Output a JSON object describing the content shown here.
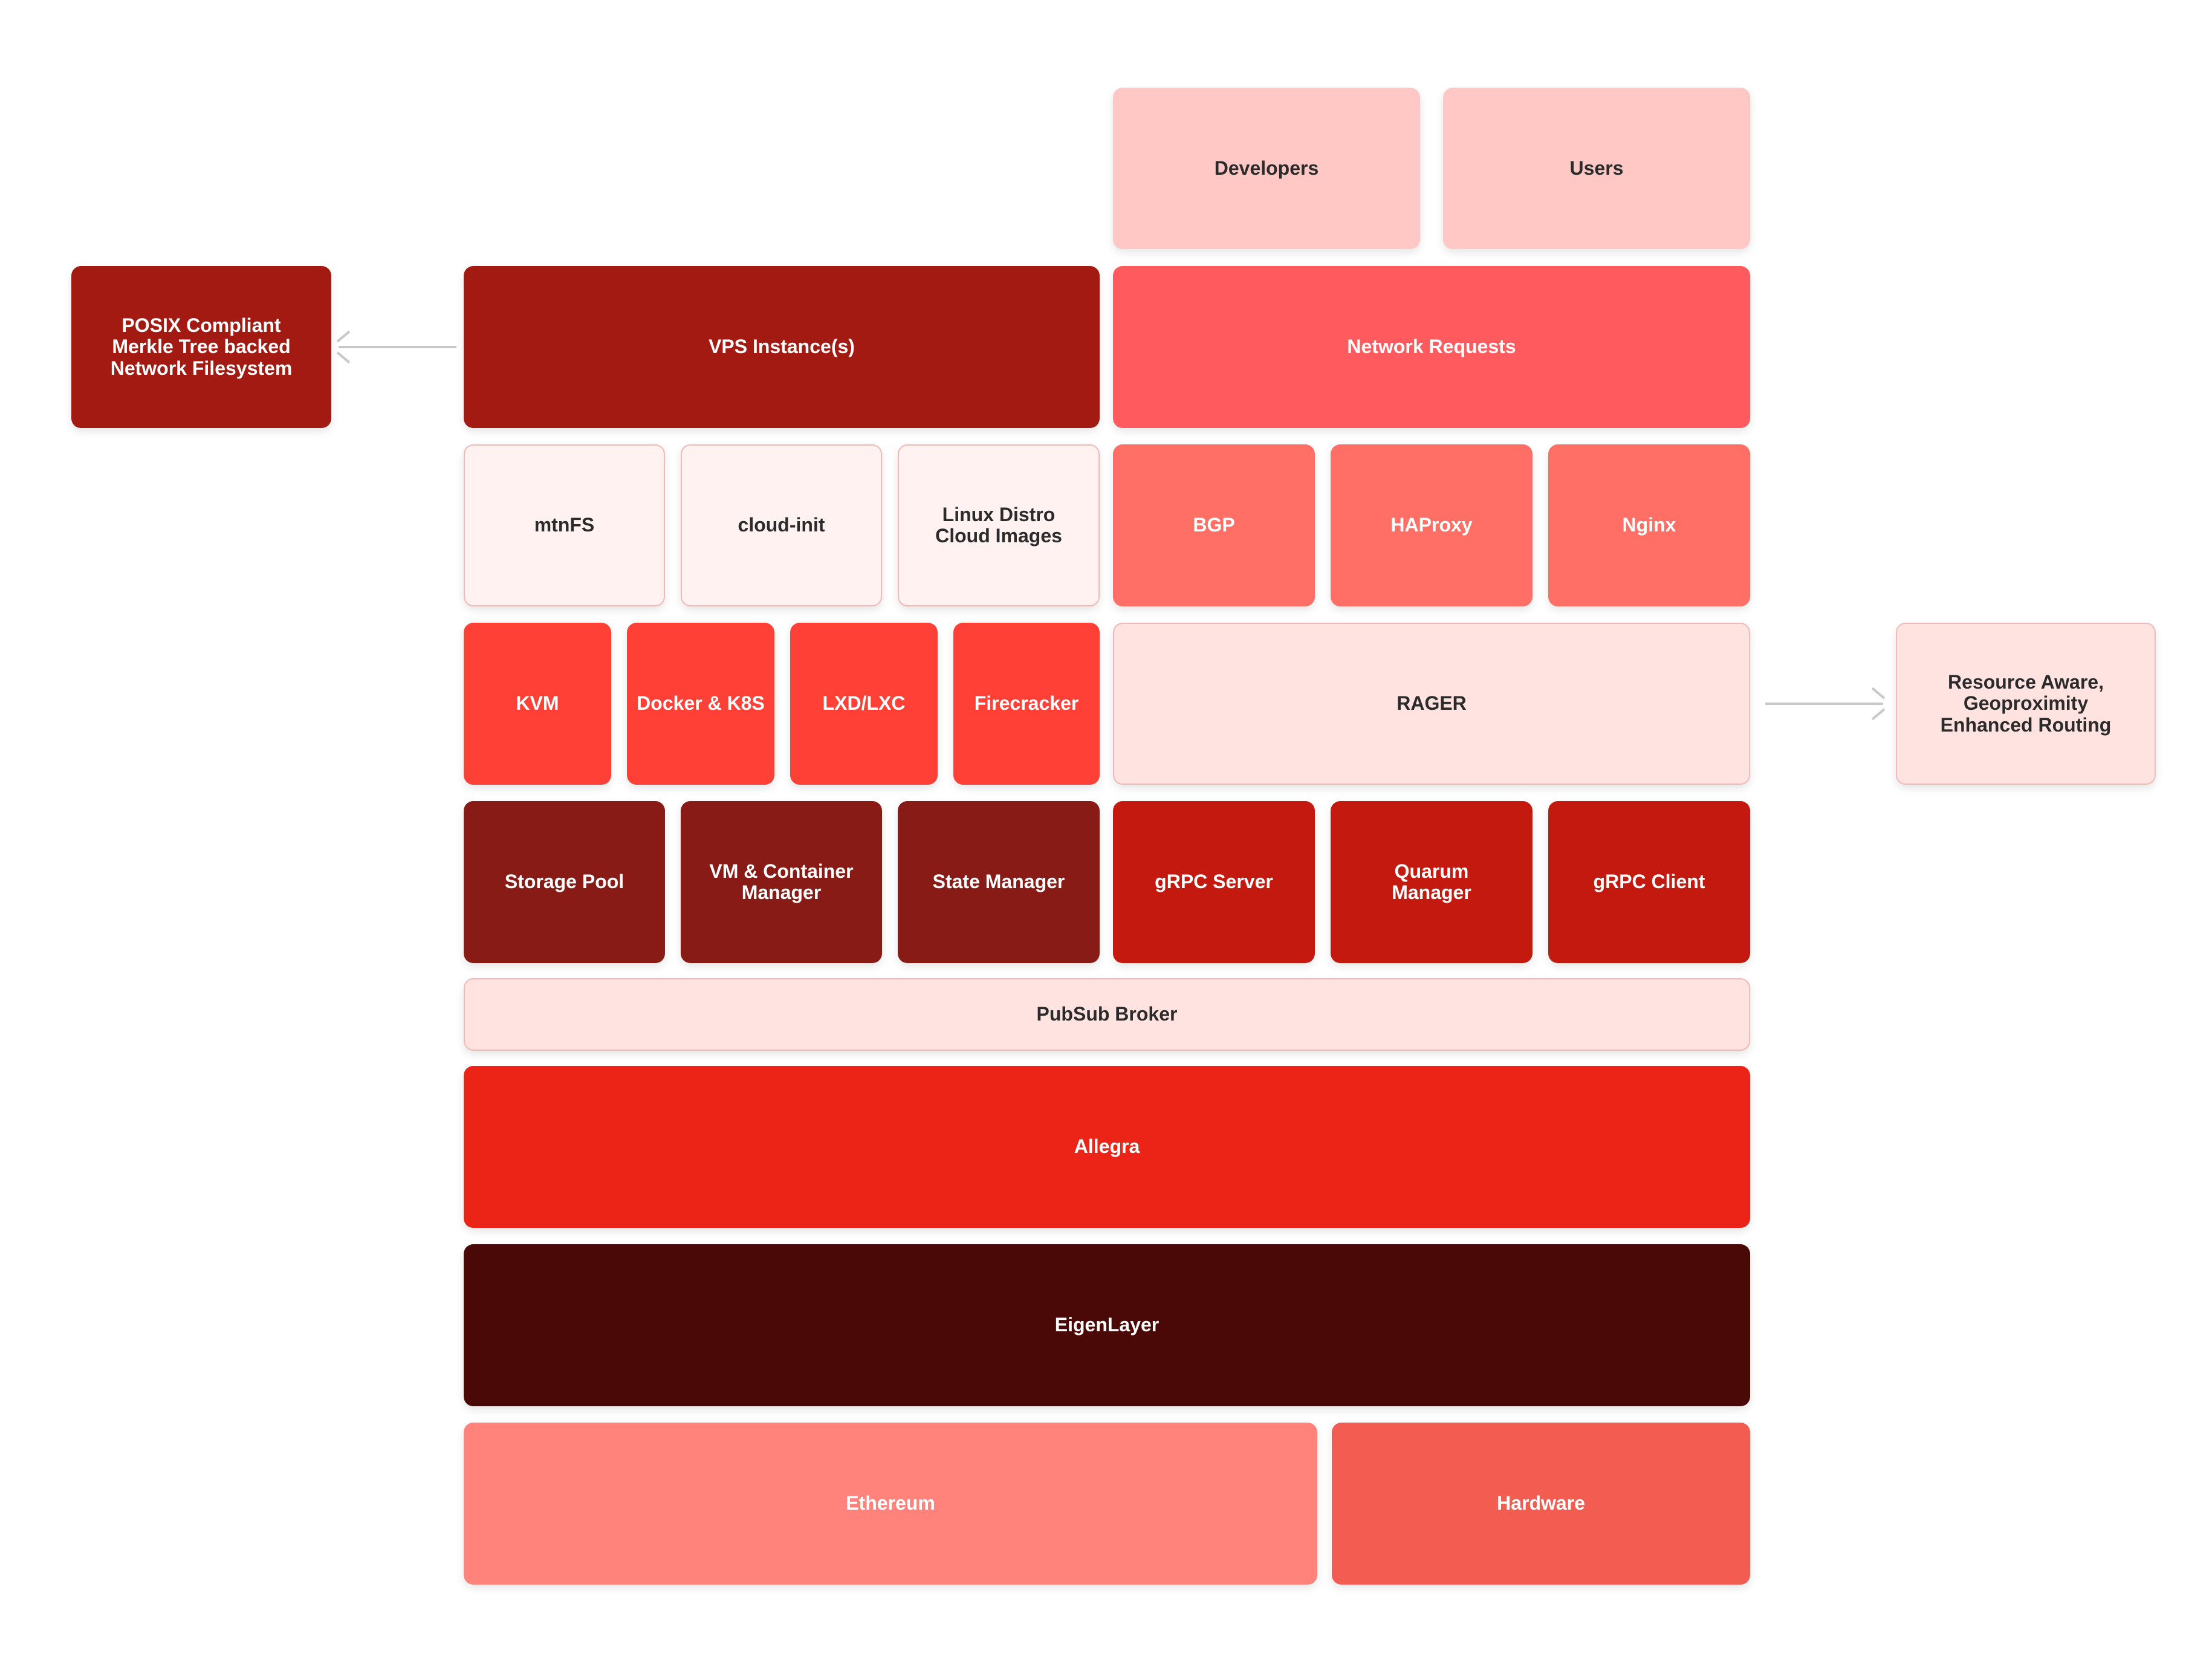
{
  "colors": {
    "users": "#ffc8c4",
    "vps": "#a21a12",
    "network": "#ff5a5e",
    "light_tile": "#fff2f1",
    "light_border": "#f3b9b7",
    "routing": "#ff6f66",
    "hypervisor": "#ff4037",
    "rager": "#ffe3e1",
    "manager": "#891b16",
    "grpc": "#c4190f",
    "pubsub": "#ffe3e1",
    "allegra": "#ec2417",
    "eigen": "#4a0906",
    "ethereum": "#ff837b",
    "hardware": "#f35c51"
  },
  "top": {
    "developers": "Developers",
    "users": "Users"
  },
  "posix": "POSIX Compliant\nMerkle Tree backed\nNetwork Filesystem",
  "vps": "VPS Instance(s)",
  "network_requests": "Network Requests",
  "row_fs": {
    "mtnfs": "mtnFS",
    "cloud_init": "cloud-init",
    "linux": "Linux Distro\nCloud Images"
  },
  "row_routing": {
    "bgp": "BGP",
    "haproxy": "HAProxy",
    "nginx": "Nginx"
  },
  "row_virt": {
    "kvm": "KVM",
    "docker": "Docker & K8S",
    "lxd": "LXD/LXC",
    "firecracker": "Firecracker"
  },
  "rager": "RAGER",
  "resource_routing": "Resource Aware,\nGeoproximity\nEnhanced Routing",
  "row_managers": {
    "storage": "Storage Pool",
    "vm": "VM & Container\nManager",
    "state": "State Manager"
  },
  "row_grpc": {
    "server": "gRPC Server",
    "quarum": "Quarum\nManager",
    "client": "gRPC Client"
  },
  "pubsub": "PubSub Broker",
  "allegra": "Allegra",
  "eigenlayer": "EigenLayer",
  "ethereum": "Ethereum",
  "hardware": "Hardware"
}
